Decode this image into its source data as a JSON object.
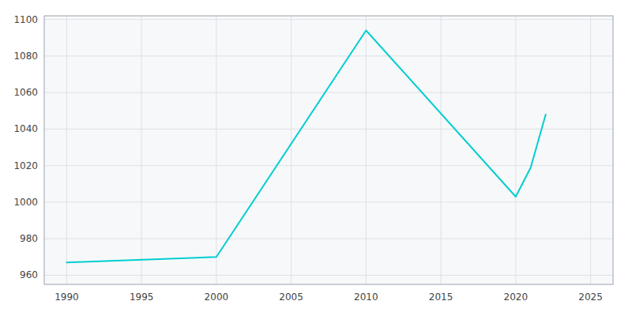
{
  "chart_data": {
    "type": "line",
    "x": [
      1990,
      2000,
      2010,
      2020,
      2021,
      2022
    ],
    "values": [
      967,
      970,
      1094,
      1003,
      1019,
      1048
    ],
    "color": "#00CED1",
    "xlim": [
      1988.5,
      2026.5
    ],
    "ylim": [
      955,
      1102
    ],
    "xticks": [
      1990,
      1995,
      2000,
      2005,
      2010,
      2015,
      2020,
      2025
    ],
    "yticks": [
      960,
      980,
      1000,
      1020,
      1040,
      1060,
      1080,
      1100
    ],
    "grid": true
  }
}
